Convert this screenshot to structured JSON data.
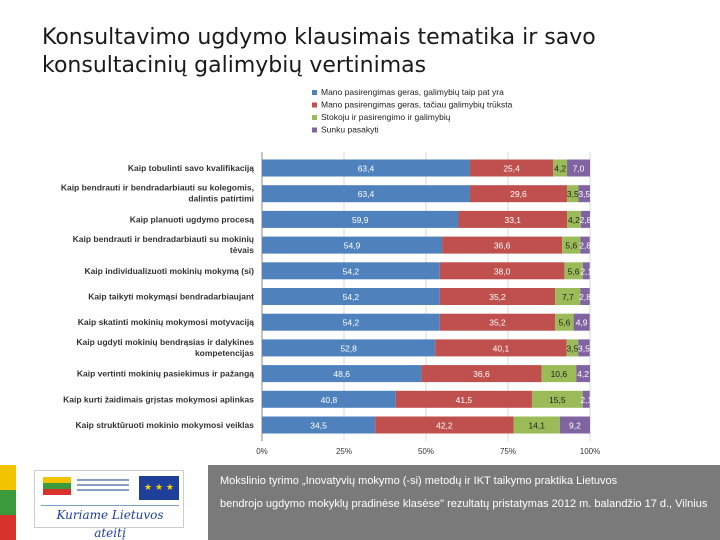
{
  "title": {
    "line1": "Konsultavimo ugdymo klausimais tematika ir savo",
    "line2": "konsultacinių galimybių vertinimas"
  },
  "footer": {
    "line1": "Mokslinio tyrimo „Inovatyvių mokymo (-si) metodų ir IKT taikymo praktika Lietuvos",
    "line2": "bendrojo ugdymo mokyklų pradinėse klasėse\" rezultatų pristatymas  2012 m. balandžio 17 d., Vilnius",
    "logo_slogan": "Kuriame Lietuvos ateitį",
    "logo_eu": "★ ★ ★"
  },
  "colors": {
    "s1": "#4f81bd",
    "s2": "#c0504d",
    "s3": "#9bbb59",
    "s4": "#8064a2"
  },
  "chart_data": {
    "type": "bar",
    "orientation": "horizontal",
    "stacked": true,
    "legend_position": "top",
    "categories": [
      [
        "Kaip tobulinti savo kvalifikaciją"
      ],
      [
        "Kaip bendrauti ir bendradarbiauti su kolegomis,",
        "dalintis patirtimi"
      ],
      [
        "Kaip planuoti ugdymo procesą"
      ],
      [
        "Kaip bendrauti ir bendradarbiauti su mokinių",
        "tėvais"
      ],
      [
        "Kaip individualizuoti mokinių mokymą (si)"
      ],
      [
        "Kaip taikyti mokymąsi bendradarbiaujant"
      ],
      [
        "Kaip skatinti mokinių mokymosi motyvaciją"
      ],
      [
        "Kaip ugdyti mokinių bendrąsias ir dalykines",
        "kompetencijas"
      ],
      [
        "Kaip vertinti mokinių pasiekimus ir pažangą"
      ],
      [
        "Kaip kurti žaidimais grįstas mokymosi aplinkas"
      ],
      [
        "Kaip struktūruoti mokinio mokymosi veiklas"
      ]
    ],
    "series": [
      {
        "name": "Mano pasirengimas geras, galimybių taip pat yra",
        "values": [
          63.4,
          63.4,
          59.9,
          54.9,
          54.2,
          54.2,
          54.2,
          52.8,
          48.6,
          40.8,
          34.5
        ],
        "labels": [
          "63,4",
          "63,4",
          "59,9",
          "54,9",
          "54,2",
          "54,2",
          "54,2",
          "52,8",
          "48,6",
          "40,8",
          "34,5"
        ]
      },
      {
        "name": "Mano pasirengimas geras, tačiau galimybių trūksta",
        "values": [
          25.4,
          29.6,
          33.1,
          36.6,
          38.0,
          35.2,
          35.2,
          40.1,
          36.6,
          41.5,
          42.2
        ],
        "labels": [
          "25,4",
          "29,6",
          "33,1",
          "36,6",
          "38,0",
          "35,2",
          "35,2",
          "40,1",
          "36,6",
          "41,5",
          "42,2"
        ]
      },
      {
        "name": "Stokoju ir pasirengimo ir galimybių",
        "values": [
          4.2,
          3.5,
          4.2,
          5.6,
          5.6,
          7.7,
          5.6,
          3.5,
          10.6,
          15.5,
          14.1
        ],
        "labels": [
          "4,2",
          "3,5",
          "4,2",
          "5,6",
          "5,6",
          "7,7",
          "5,6",
          "3,5",
          "10,6",
          "15,5",
          "14,1"
        ]
      },
      {
        "name": "Sunku pasakyti",
        "values": [
          7.0,
          3.5,
          2.8,
          2.8,
          2.1,
          2.8,
          4.9,
          3.5,
          4.2,
          2.1,
          9.2
        ],
        "labels": [
          "7,0",
          "3,5",
          "2,8",
          "2,8",
          "2,1",
          "2,8",
          "4,9",
          "3,5",
          "4,2",
          "2,1",
          "9,2"
        ]
      }
    ],
    "x_ticks": [
      "0%",
      "25%",
      "50%",
      "75%",
      "100%"
    ],
    "xlim": [
      0,
      100
    ],
    "grid": true
  }
}
